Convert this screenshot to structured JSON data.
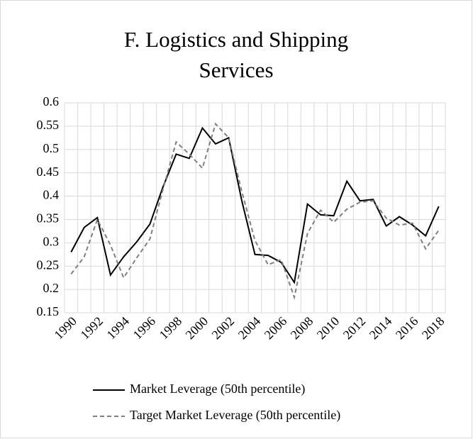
{
  "chart_data": {
    "type": "line",
    "title": "F. Logistics and Shipping Services",
    "categories": [
      "1990",
      null,
      "1992",
      null,
      "1994",
      null,
      "1996",
      null,
      "1998",
      null,
      "2000",
      null,
      "2002",
      null,
      "2004",
      null,
      "2006",
      null,
      "2008",
      null,
      "2010",
      null,
      "2012",
      null,
      "2014",
      null,
      "2016",
      null,
      "2018"
    ],
    "series": [
      {
        "name": "Market Leverage (50th percentile)",
        "color": "#000000",
        "line_style": "solid",
        "values": [
          0.28,
          0.333,
          0.354,
          0.231,
          0.27,
          0.302,
          0.34,
          0.42,
          0.49,
          0.481,
          0.546,
          0.512,
          0.525,
          0.39,
          0.275,
          0.273,
          0.258,
          0.215,
          0.383,
          0.36,
          0.358,
          0.432,
          0.39,
          0.393,
          0.336,
          0.356,
          0.338,
          0.315,
          0.378
        ]
      },
      {
        "name": "Target Market Leverage (50th percentile)",
        "color": "#808080",
        "line_style": "dashed",
        "values": [
          0.233,
          0.27,
          0.35,
          0.295,
          0.225,
          0.268,
          0.308,
          0.415,
          0.516,
          0.49,
          0.46,
          0.555,
          0.525,
          0.41,
          0.305,
          0.253,
          0.264,
          0.183,
          0.32,
          0.37,
          0.344,
          0.372,
          0.387,
          0.39,
          0.353,
          0.338,
          0.342,
          0.287,
          0.327
        ]
      }
    ],
    "ylim": [
      0.15,
      0.6
    ],
    "yticks": [
      0.15,
      0.2,
      0.25,
      0.3,
      0.35,
      0.4,
      0.45,
      0.5,
      0.55,
      0.6
    ],
    "grid": true,
    "legend": "bottom"
  }
}
